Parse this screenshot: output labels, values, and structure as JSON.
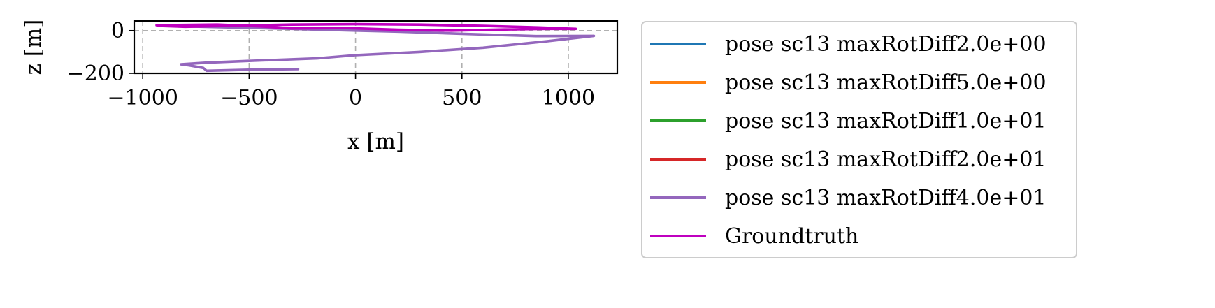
{
  "chart_data": {
    "type": "line",
    "title": "",
    "xlabel": "x [m]",
    "ylabel": "z [m]",
    "xlim": [
      -1040,
      1230
    ],
    "ylim": [
      -200,
      45
    ],
    "xticks": [
      -1000,
      -500,
      0,
      500,
      1000
    ],
    "xtick_labels": [
      "−1000",
      "−500",
      "0",
      "500",
      "1000"
    ],
    "yticks": [
      -200,
      0
    ],
    "ytick_labels": [
      "−200",
      "0"
    ],
    "grid": true,
    "legend_position": "outside-right",
    "series": [
      {
        "name": "pose sc13 maxRotDiff2.0e+00",
        "color": "#1f77b4",
        "points": []
      },
      {
        "name": "pose sc13 maxRotDiff5.0e+00",
        "color": "#ff7f0e",
        "points": []
      },
      {
        "name": "pose sc13 maxRotDiff1.0e+01",
        "color": "#2ca02c",
        "points": []
      },
      {
        "name": "pose sc13 maxRotDiff2.0e+01",
        "color": "#d62728",
        "points": []
      },
      {
        "name": "pose sc13 maxRotDiff4.0e+01",
        "color": "#9467bd",
        "points": [
          [
            -270,
            -180
          ],
          [
            -500,
            -183
          ],
          [
            -700,
            -188
          ],
          [
            -715,
            -175
          ],
          [
            -780,
            -163
          ],
          [
            -820,
            -158
          ],
          [
            -700,
            -150
          ],
          [
            -500,
            -142
          ],
          [
            -180,
            -130
          ],
          [
            0,
            -115
          ],
          [
            300,
            -100
          ],
          [
            600,
            -80
          ],
          [
            900,
            -50
          ],
          [
            1120,
            -25
          ],
          [
            850,
            -26
          ],
          [
            500,
            -15
          ],
          [
            200,
            -5
          ],
          [
            0,
            0
          ],
          [
            -300,
            8
          ],
          [
            -600,
            15
          ],
          [
            -900,
            22
          ],
          [
            -930,
            23
          ]
        ]
      },
      {
        "name": "Groundtruth",
        "color": "#bf00bf",
        "points": [
          [
            -935,
            25
          ],
          [
            -650,
            28
          ],
          [
            -450,
            20
          ],
          [
            -300,
            10
          ],
          [
            -50,
            12
          ],
          [
            200,
            4
          ],
          [
            450,
            0
          ],
          [
            700,
            5
          ],
          [
            900,
            8
          ],
          [
            1035,
            8
          ],
          [
            850,
            15
          ],
          [
            600,
            22
          ],
          [
            300,
            28
          ],
          [
            0,
            30
          ],
          [
            -300,
            28
          ],
          [
            -600,
            22
          ],
          [
            -800,
            18
          ],
          [
            -930,
            22
          ]
        ]
      }
    ]
  }
}
